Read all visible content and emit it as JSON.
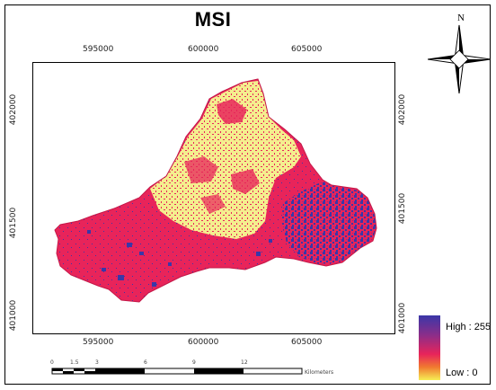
{
  "title": "MSI",
  "north_label": "N",
  "x_ticks": [
    "595000",
    "600000",
    "605000"
  ],
  "y_ticks": [
    "402000",
    "401500",
    "401000"
  ],
  "legend": {
    "high": "High : 255",
    "low": "Low : 0",
    "colors": [
      "#3a37a8",
      "#e8245a",
      "#f6ee55"
    ]
  },
  "scale_bar": {
    "labels": [
      "0",
      "1.5",
      "3",
      "6",
      "9",
      "12"
    ],
    "unit": "Kilometers"
  },
  "class_colors": {
    "high": "#3a37a8",
    "mid": "#e8245a",
    "low": "#f4ee8e"
  }
}
